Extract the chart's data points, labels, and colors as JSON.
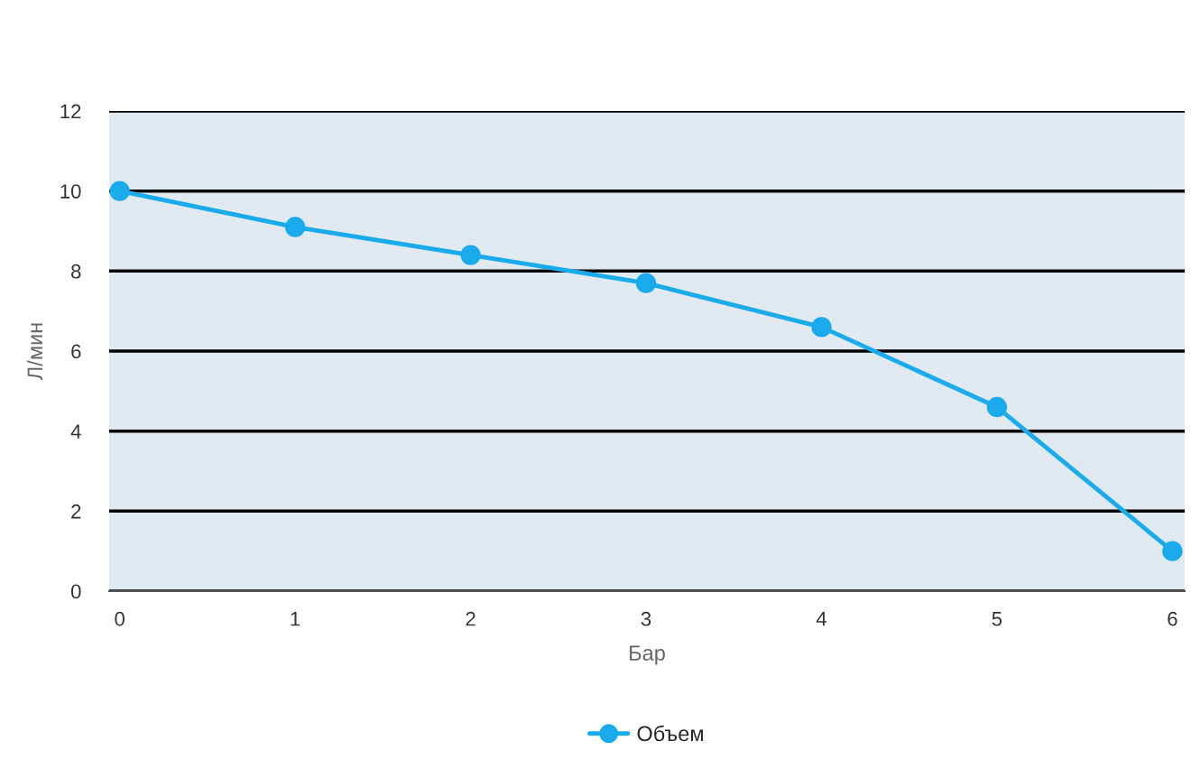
{
  "chart_data": {
    "type": "line",
    "xlabel": "Бар",
    "ylabel": "Л/мин",
    "x": [
      0,
      1,
      2,
      3,
      4,
      5,
      6
    ],
    "series": [
      {
        "name": "Объем",
        "color": "#1aabec",
        "values": [
          10,
          9.1,
          8.4,
          7.7,
          6.6,
          4.6,
          1.0
        ]
      }
    ],
    "xlim": [
      -0.06,
      6.07
    ],
    "ylim": [
      0,
      12
    ],
    "xticks": [
      0,
      1,
      2,
      3,
      4,
      5,
      6
    ],
    "yticks": [
      0,
      2,
      4,
      6,
      8,
      10,
      12
    ],
    "grid": "y",
    "legend": "bottom",
    "marker": "circle",
    "line_style": "solid"
  }
}
